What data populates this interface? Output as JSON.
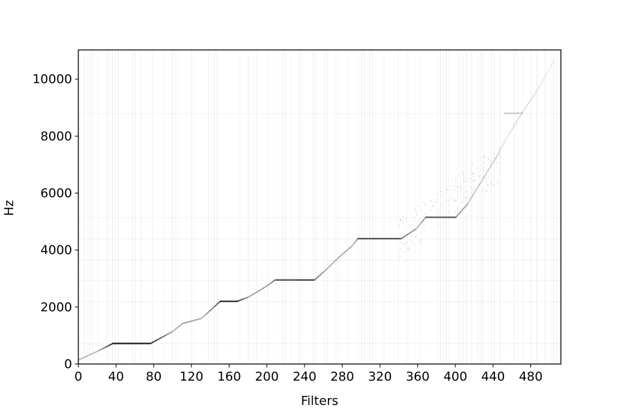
{
  "chart_data": {
    "type": "heatmap",
    "title": "",
    "xlabel": "Filters",
    "ylabel": "Hz",
    "xlim": [
      0,
      512
    ],
    "ylim": [
      0,
      11025
    ],
    "x_ticks": [
      0,
      40,
      80,
      120,
      160,
      200,
      240,
      280,
      320,
      360,
      400,
      440,
      480
    ],
    "y_ticks": [
      0,
      2000,
      4000,
      6000,
      8000,
      10000
    ],
    "grid": false,
    "colormap": "white-to-black",
    "description_of_values": "response intensity, 0 (white) to 1 (black)",
    "ridge": [
      {
        "x": 0,
        "y": 150,
        "intensity": 0.25
      },
      {
        "x": 20,
        "y": 450,
        "intensity": 0.25
      },
      {
        "x": 36,
        "y": 720,
        "intensity": 0.85
      },
      {
        "x": 76,
        "y": 720,
        "intensity": 0.85
      },
      {
        "x": 100,
        "y": 1150,
        "intensity": 0.3
      },
      {
        "x": 110,
        "y": 1420,
        "intensity": 0.35
      },
      {
        "x": 130,
        "y": 1600,
        "intensity": 0.3
      },
      {
        "x": 150,
        "y": 2200,
        "intensity": 0.75
      },
      {
        "x": 168,
        "y": 2200,
        "intensity": 0.75
      },
      {
        "x": 180,
        "y": 2350,
        "intensity": 0.35
      },
      {
        "x": 200,
        "y": 2750,
        "intensity": 0.35
      },
      {
        "x": 208,
        "y": 2950,
        "intensity": 0.55
      },
      {
        "x": 250,
        "y": 2950,
        "intensity": 0.6
      },
      {
        "x": 262,
        "y": 3300,
        "intensity": 0.35
      },
      {
        "x": 276,
        "y": 3750,
        "intensity": 0.35
      },
      {
        "x": 290,
        "y": 4150,
        "intensity": 0.35
      },
      {
        "x": 296,
        "y": 4400,
        "intensity": 0.55
      },
      {
        "x": 342,
        "y": 4400,
        "intensity": 0.55
      },
      {
        "x": 358,
        "y": 4750,
        "intensity": 0.35
      },
      {
        "x": 368,
        "y": 5150,
        "intensity": 0.5
      },
      {
        "x": 400,
        "y": 5150,
        "intensity": 0.5
      },
      {
        "x": 412,
        "y": 5600,
        "intensity": 0.35
      },
      {
        "x": 425,
        "y": 6300,
        "intensity": 0.3
      },
      {
        "x": 440,
        "y": 7100,
        "intensity": 0.25
      },
      {
        "x": 455,
        "y": 8000,
        "intensity": 0.15
      },
      {
        "x": 470,
        "y": 8800,
        "intensity": 0.2
      },
      {
        "x": 490,
        "y": 9800,
        "intensity": 0.12
      },
      {
        "x": 505,
        "y": 10700,
        "intensity": 0.1
      }
    ],
    "horizontal_bands": [
      {
        "y": 720,
        "x_start": 36,
        "x_end": 76,
        "intensity": 0.85
      },
      {
        "y": 2200,
        "x_start": 150,
        "x_end": 168,
        "intensity": 0.75
      },
      {
        "y": 2950,
        "x_start": 210,
        "x_end": 250,
        "intensity": 0.55
      },
      {
        "y": 4400,
        "x_start": 296,
        "x_end": 342,
        "intensity": 0.5
      },
      {
        "y": 5150,
        "x_start": 368,
        "x_end": 400,
        "intensity": 0.5
      },
      {
        "y": 8800,
        "x_start": 452,
        "x_end": 470,
        "intensity": 0.4
      }
    ]
  }
}
